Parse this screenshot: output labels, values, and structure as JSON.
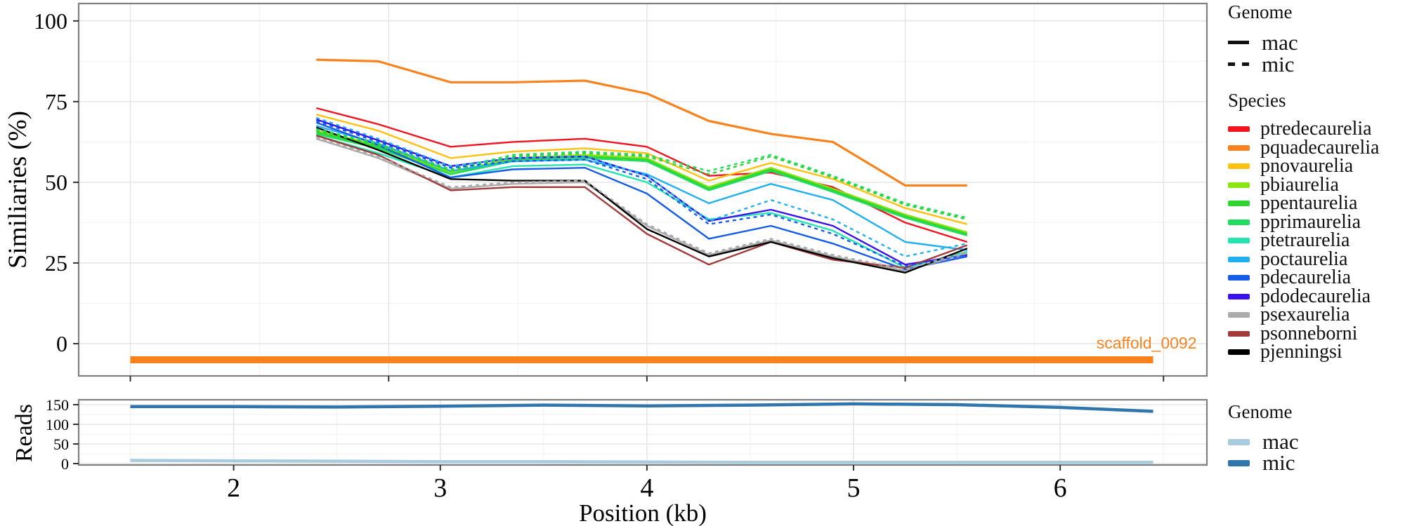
{
  "axis": {
    "main_ylabel": "Similiaries (%)",
    "reads_ylabel": "Reads",
    "xlabel": "Position (kb)"
  },
  "chart_data": [
    {
      "type": "line",
      "panel": "similarity",
      "ylabel": "Similiaries (%)",
      "xlim": [
        1.25,
        6.71
      ],
      "ylim": [
        -10,
        105.4
      ],
      "grid": true,
      "x_major": [
        1.5,
        2.75,
        4.0,
        5.25,
        6.5
      ],
      "x_minor": [
        2.125,
        3.375,
        4.625,
        5.875
      ],
      "y_ticks": [
        0,
        25,
        50,
        75,
        100
      ],
      "y_tick_labels": [
        "0",
        "25",
        "50",
        "75",
        "100"
      ],
      "y_minor": [
        12.5,
        37.5,
        62.5,
        87.5
      ],
      "x": [
        2.4,
        2.7,
        3.05,
        3.35,
        3.7,
        4.0,
        4.3,
        4.6,
        4.9,
        5.25,
        5.55
      ],
      "series": [
        {
          "name": "pquadecaurelia",
          "genome": "mac",
          "color": "#F8821D",
          "width": 3.2,
          "dash": "",
          "values": [
            88,
            87.5,
            81,
            81,
            81.5,
            77.5,
            69,
            65,
            62.5,
            49,
            49
          ]
        },
        {
          "name": "ptredecaurelia",
          "genome": "mac",
          "color": "#F1131E",
          "width": 2.4,
          "dash": "",
          "values": [
            73,
            68,
            61,
            62.5,
            63.5,
            61,
            52,
            53,
            48.5,
            37.5,
            31.5
          ]
        },
        {
          "name": "pnovaurelia",
          "genome": "mac",
          "color": "#FEC10F",
          "width": 2.4,
          "dash": "",
          "values": [
            71,
            66,
            57.5,
            59.5,
            60.5,
            59,
            50.5,
            56,
            51,
            42,
            37
          ]
        },
        {
          "name": "pbiaurelia",
          "genome": "mac",
          "color": "#8BE512",
          "width": 2.4,
          "dash": "",
          "values": [
            66,
            61.5,
            53,
            57.5,
            58.5,
            57.5,
            48.5,
            54.5,
            48,
            40,
            34.5
          ]
        },
        {
          "name": "ppentaurelia",
          "genome": "mac",
          "color": "#2ED52E",
          "width": 2.4,
          "dash": "",
          "values": [
            65.5,
            61,
            52.5,
            57,
            58,
            57,
            48,
            54,
            47.5,
            39.5,
            34
          ]
        },
        {
          "name": "pprimaurelia",
          "genome": "mac",
          "color": "#20DD60",
          "width": 2.4,
          "dash": "",
          "values": [
            65,
            60.5,
            52.5,
            56.5,
            57.5,
            56.5,
            47.5,
            53.5,
            47,
            39,
            33.5
          ]
        },
        {
          "name": "ptetraurelia",
          "genome": "mac",
          "color": "#22E5B0",
          "width": 2.4,
          "dash": "",
          "values": [
            64.5,
            59,
            51.5,
            55,
            55.5,
            50,
            38.5,
            40.5,
            35,
            23.5,
            28.5
          ]
        },
        {
          "name": "poctaurelia",
          "genome": "mac",
          "color": "#1FB0F0",
          "width": 2.4,
          "dash": "",
          "values": [
            67.5,
            62,
            53.5,
            56.5,
            57,
            52.5,
            43.5,
            49.5,
            44.5,
            31.5,
            29
          ]
        },
        {
          "name": "pdecaurelia",
          "genome": "mac",
          "color": "#155DE8",
          "width": 2.4,
          "dash": "",
          "values": [
            68.5,
            61.5,
            51.5,
            54,
            54.5,
            46.5,
            32.5,
            36.5,
            31,
            23,
            27
          ]
        },
        {
          "name": "pdodecaurelia",
          "genome": "mac",
          "color": "#3A10EE",
          "width": 2.4,
          "dash": "",
          "values": [
            69.5,
            63,
            55,
            57.5,
            58,
            52,
            38,
            41.5,
            36.5,
            24.5,
            27.5
          ]
        },
        {
          "name": "psexaurelia",
          "genome": "mac",
          "color": "#ABABAB",
          "width": 2.4,
          "dash": "",
          "values": [
            63.5,
            57.5,
            48,
            49.5,
            50,
            36.5,
            27.5,
            32,
            27,
            22.5,
            28
          ]
        },
        {
          "name": "psonneborni",
          "genome": "mac",
          "color": "#A33A3A",
          "width": 2.4,
          "dash": "",
          "values": [
            64.5,
            58.5,
            47.5,
            48.5,
            48.5,
            34,
            24.5,
            31.5,
            26,
            23.5,
            30.5
          ]
        },
        {
          "name": "pjenningsi",
          "genome": "mac",
          "color": "#000000",
          "width": 2.4,
          "dash": "",
          "values": [
            67,
            60,
            51,
            50.5,
            50.5,
            35.5,
            27,
            31.5,
            26.5,
            22,
            29.5
          ]
        },
        {
          "name": "pprimaurelia",
          "genome": "mic",
          "color": "#20DD60",
          "width": 2.4,
          "dash": "5 5",
          "values": [
            66.5,
            62,
            54,
            58.5,
            59.5,
            58.5,
            53.5,
            58.5,
            52,
            43.5,
            39
          ]
        },
        {
          "name": "ppentaurelia",
          "genome": "mic",
          "color": "#2ED52E",
          "width": 2.4,
          "dash": "5 5",
          "values": [
            66,
            61.5,
            53.5,
            58,
            59,
            58,
            52.5,
            58,
            51.5,
            43,
            38.5
          ]
        },
        {
          "name": "poctaurelia",
          "genome": "mic",
          "color": "#1FB0F0",
          "width": 2.4,
          "dash": "5 5",
          "values": [
            70,
            63.5,
            55,
            57.5,
            58,
            52,
            38,
            44.5,
            38.5,
            27,
            31
          ]
        },
        {
          "name": "pdecaurelia",
          "genome": "mic",
          "color": "#155DE8",
          "width": 2.4,
          "dash": "5 5",
          "values": [
            69,
            62.5,
            54.5,
            56.5,
            57,
            51,
            37,
            40,
            34,
            24,
            27.5
          ]
        },
        {
          "name": "psexaurelia",
          "genome": "mic",
          "color": "#ABABAB",
          "width": 2.4,
          "dash": "5 5",
          "values": [
            64,
            58,
            48.5,
            50,
            50.5,
            37,
            28,
            32.5,
            27.5,
            23,
            28.5
          ]
        }
      ],
      "scaffold": {
        "label": "scaffold_0092",
        "x_start": 1.5,
        "x_end": 6.45,
        "y": -5,
        "color": "#F8821D"
      }
    },
    {
      "type": "line",
      "panel": "reads",
      "ylabel": "Reads",
      "xlabel": "Position (kb)",
      "xlim": [
        1.25,
        6.71
      ],
      "ylim": [
        -3.6,
        162.5
      ],
      "grid": true,
      "x_major": [
        2,
        3,
        4,
        5,
        6
      ],
      "x_tick_labels": [
        "2",
        "3",
        "4",
        "5",
        "6"
      ],
      "x_minor": [
        1.5,
        2.5,
        3.5,
        4.5,
        5.5,
        6.5
      ],
      "y_ticks": [
        0,
        50,
        100,
        150
      ],
      "y_tick_labels": [
        "0",
        "50",
        "100",
        "150"
      ],
      "y_minor": [
        25,
        75,
        125
      ],
      "x": [
        1.5,
        2,
        2.5,
        3,
        3.5,
        4,
        4.5,
        5,
        5.5,
        6,
        6.45
      ],
      "series": [
        {
          "name": "mic",
          "genome": "mic",
          "color": "#3076AD",
          "width": 4.5,
          "dash": "",
          "values": [
            145,
            145,
            144,
            146,
            149,
            147,
            149,
            152,
            150,
            143,
            133
          ]
        },
        {
          "name": "mac",
          "genome": "mac",
          "color": "#A9CBE0",
          "width": 4.5,
          "dash": "",
          "values": [
            8,
            7,
            6,
            5,
            5,
            4,
            3,
            3,
            3,
            3,
            3
          ]
        }
      ]
    }
  ],
  "legends": {
    "genome_top": {
      "title": "Genome",
      "items": [
        {
          "label": "mac",
          "style": "solid"
        },
        {
          "label": "mic",
          "style": "dashed"
        }
      ]
    },
    "species": {
      "title": "Species",
      "items": [
        {
          "label": "ptredecaurelia",
          "color": "#F1131E"
        },
        {
          "label": "pquadecaurelia",
          "color": "#F8821D"
        },
        {
          "label": "pnovaurelia",
          "color": "#FEC10F"
        },
        {
          "label": "pbiaurelia",
          "color": "#8BE512"
        },
        {
          "label": "ppentaurelia",
          "color": "#2ED52E"
        },
        {
          "label": "pprimaurelia",
          "color": "#20DD60"
        },
        {
          "label": "ptetraurelia",
          "color": "#22E5B0"
        },
        {
          "label": "poctaurelia",
          "color": "#1FB0F0"
        },
        {
          "label": "pdecaurelia",
          "color": "#155DE8"
        },
        {
          "label": "pdodecaurelia",
          "color": "#3A10EE"
        },
        {
          "label": "psexaurelia",
          "color": "#ABABAB"
        },
        {
          "label": "psonneborni",
          "color": "#A33A3A"
        },
        {
          "label": "pjenningsi",
          "color": "#000000"
        }
      ]
    },
    "genome_bottom": {
      "title": "Genome",
      "items": [
        {
          "label": "mac",
          "color": "#A9CBE0"
        },
        {
          "label": "mic",
          "color": "#3076AD"
        }
      ]
    }
  },
  "style_colors": {
    "panel_border": "#7F7F7F",
    "grid_major": "#E7E7E7",
    "grid_minor": "#F3F3F3",
    "tick": "#333333",
    "text": "#000000"
  }
}
